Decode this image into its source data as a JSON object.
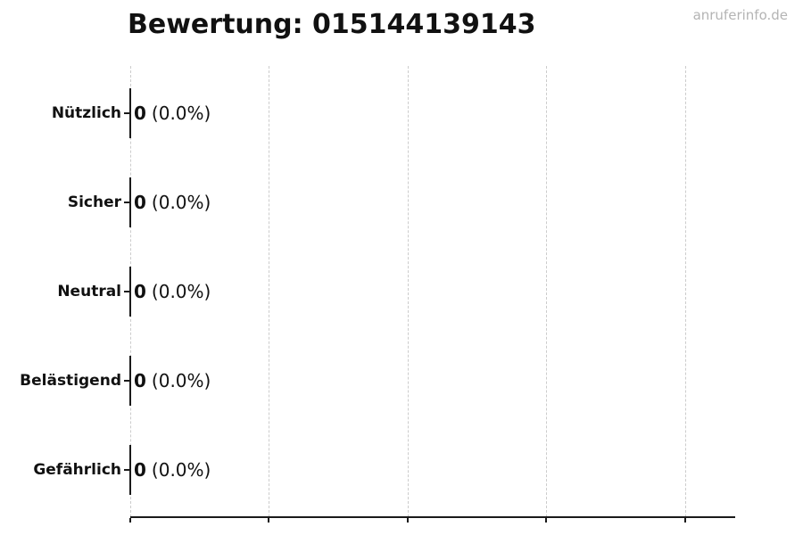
{
  "watermark": "anruferinfo.de",
  "chart_data": {
    "type": "bar",
    "orientation": "horizontal",
    "title": "Bewertung: 015144139143",
    "categories": [
      "Nützlich",
      "Sicher",
      "Neutral",
      "Belästigend",
      "Gefährlich"
    ],
    "values": [
      0,
      0,
      0,
      0,
      0
    ],
    "value_labels": [
      "0 (0.0%)",
      "0 (0.0%)",
      "0 (0.0%)",
      "0 (0.0%)",
      "0 (0.0%)"
    ],
    "rows": [
      {
        "label": "Nützlich",
        "count": "0",
        "percent": "(0.0%)"
      },
      {
        "label": "Sicher",
        "count": "0",
        "percent": "(0.0%)"
      },
      {
        "label": "Neutral",
        "count": "0",
        "percent": "(0.0%)"
      },
      {
        "label": "Belästigend",
        "count": "0",
        "percent": "(0.0%)"
      },
      {
        "label": "Gefährlich",
        "count": "0",
        "percent": "(0.0%)"
      }
    ],
    "xlabel": "",
    "ylabel": "",
    "xlim": [
      0,
      1.1
    ],
    "x_ticks": [
      0,
      0.25,
      0.5,
      0.75,
      1.0
    ],
    "x_tick_labels": [],
    "grid": "vertical dashed gridlines",
    "legend": "none",
    "colors": {
      "axis": "#1a1a1a",
      "gridline": "#cccccc",
      "text": "#111111",
      "watermark": "#b4b4b4",
      "background": "#ffffff"
    }
  }
}
